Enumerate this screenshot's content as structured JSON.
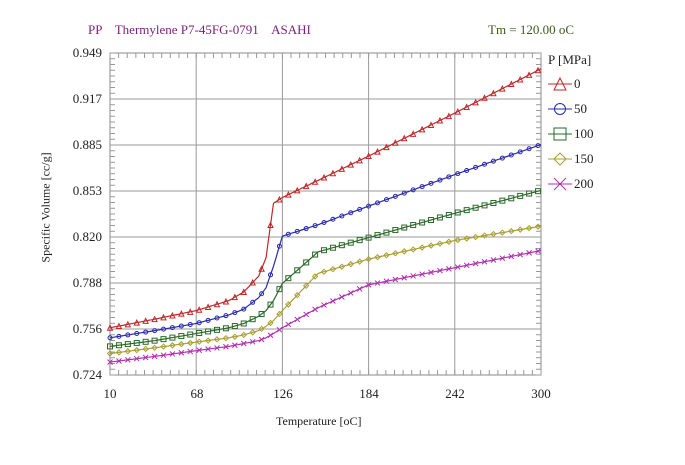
{
  "header": {
    "title_left": "PP    Thermylene P7-45FG-0791    ASAHI",
    "title_right": "Tm = 120.00 oC"
  },
  "chart_data": {
    "type": "line",
    "title": "PP Thermylene P7-45FG-0791 ASAHI",
    "annotation": "Tm = 120.00 oC",
    "xlabel": "Temperature [oC]",
    "ylabel": "Specific Volume [cc/g]",
    "xlim": [
      10,
      300
    ],
    "ylim": [
      0.724,
      0.949
    ],
    "xticks": [
      "10",
      "68",
      "126",
      "184",
      "242",
      "300"
    ],
    "yticks": [
      "0.949",
      "0.917",
      "0.885",
      "0.853",
      "0.820",
      "0.788",
      "0.756",
      "0.724"
    ],
    "grid": true,
    "legend_title": "P [MPa]",
    "legend_position": "right",
    "x": [
      10,
      40,
      68,
      90,
      100,
      110,
      115,
      120,
      126,
      150,
      184,
      242,
      300
    ],
    "series": [
      {
        "name": "0",
        "color": "#c0282a",
        "marker": "triangle",
        "values": [
          0.757,
          0.763,
          0.769,
          0.776,
          0.782,
          0.793,
          0.806,
          0.844,
          0.848,
          0.86,
          0.877,
          0.907,
          0.938
        ]
      },
      {
        "name": "50",
        "color": "#2a2ab0",
        "marker": "circle",
        "values": [
          0.75,
          0.755,
          0.76,
          0.766,
          0.77,
          0.778,
          0.785,
          0.8,
          0.821,
          0.829,
          0.842,
          0.864,
          0.885
        ]
      },
      {
        "name": "100",
        "color": "#2a6a2a",
        "marker": "square",
        "values": [
          0.744,
          0.748,
          0.753,
          0.757,
          0.76,
          0.765,
          0.769,
          0.776,
          0.788,
          0.81,
          0.82,
          0.837,
          0.853
        ]
      },
      {
        "name": "150",
        "color": "#a8a030",
        "marker": "diamond",
        "values": [
          0.739,
          0.743,
          0.747,
          0.75,
          0.752,
          0.755,
          0.758,
          0.762,
          0.769,
          0.795,
          0.805,
          0.818,
          0.828
        ]
      },
      {
        "name": "200",
        "color": "#b030b0",
        "marker": "cross",
        "values": [
          0.733,
          0.737,
          0.741,
          0.744,
          0.746,
          0.748,
          0.75,
          0.753,
          0.757,
          0.771,
          0.787,
          0.799,
          0.811
        ]
      }
    ]
  }
}
